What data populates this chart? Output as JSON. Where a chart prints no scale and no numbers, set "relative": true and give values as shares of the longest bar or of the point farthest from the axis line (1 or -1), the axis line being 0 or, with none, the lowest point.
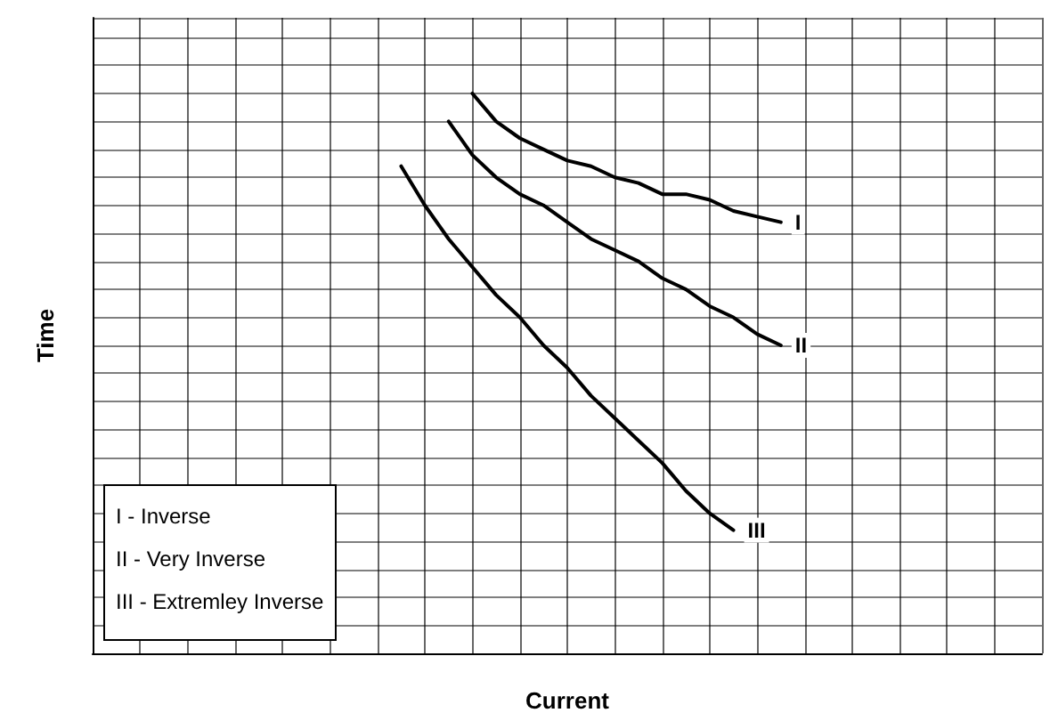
{
  "chart_data": {
    "type": "line",
    "xlabel": "Current",
    "ylabel": "Time",
    "relative": true,
    "grid": true,
    "legend": false,
    "marker": "none",
    "line_style": "solid",
    "categories": [
      null,
      null,
      null,
      null,
      null,
      null,
      null,
      null,
      null,
      null,
      null,
      null,
      null,
      null,
      null,
      null,
      null,
      null,
      null,
      null,
      null,
      null,
      null,
      null,
      null,
      null,
      null,
      null,
      null,
      null,
      null,
      null,
      null,
      null,
      null,
      null,
      null,
      null,
      null,
      null,
      null
    ],
    "series": [
      {
        "name": "I",
        "color": "#000000",
        "values": [
          null,
          null,
          null,
          null,
          null,
          null,
          null,
          null,
          null,
          null,
          null,
          null,
          null,
          null,
          null,
          null,
          1,
          0.95,
          0.92,
          0.9,
          0.88,
          0.87,
          0.85,
          0.84,
          0.82,
          0.82,
          0.81,
          0.79,
          0.78,
          0.77,
          null,
          null,
          null,
          null,
          null,
          null,
          null,
          null,
          null,
          null,
          null
        ]
      },
      {
        "name": "II",
        "color": "#000000",
        "values": [
          null,
          null,
          null,
          null,
          null,
          null,
          null,
          null,
          null,
          null,
          null,
          null,
          null,
          null,
          null,
          0.95,
          0.89,
          0.85,
          0.82,
          0.8,
          0.77,
          0.74,
          0.72,
          0.7,
          0.67,
          0.65,
          0.62,
          0.6,
          0.57,
          0.55,
          null,
          null,
          null,
          null,
          null,
          null,
          null,
          null,
          null,
          null,
          null
        ]
      },
      {
        "name": "III",
        "color": "#000000",
        "values": [
          null,
          null,
          null,
          null,
          null,
          null,
          null,
          null,
          null,
          null,
          null,
          null,
          null,
          0.87,
          0.8,
          0.74,
          0.69,
          0.64,
          0.6,
          0.55,
          0.51,
          0.46,
          0.42,
          0.38,
          0.34,
          0.29,
          0.25,
          0.22,
          null,
          null,
          null,
          null,
          null,
          null,
          null,
          null,
          null,
          null,
          null,
          null,
          null
        ]
      }
    ],
    "annotations": [
      "I - Inverse",
      "II - Very Inverse",
      "III - Extremley Inverse"
    ]
  }
}
